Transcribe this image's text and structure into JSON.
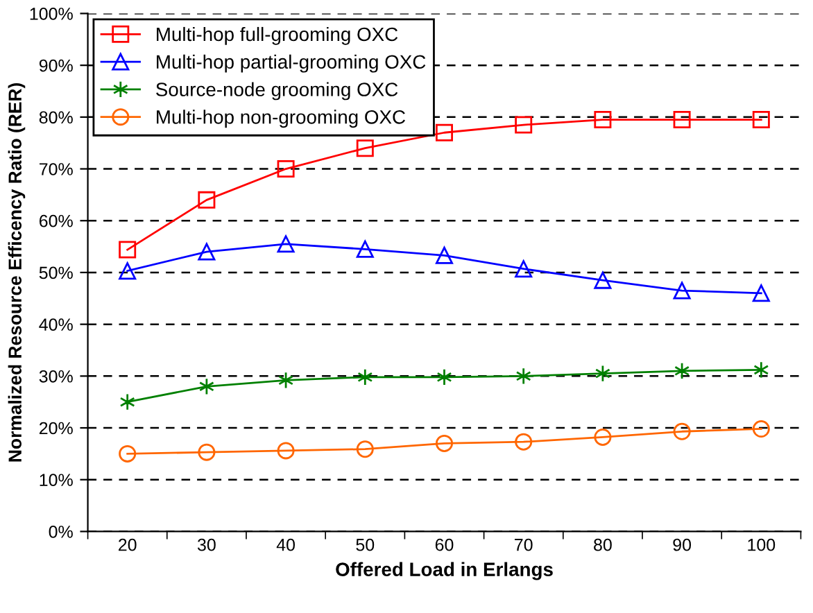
{
  "chart_data": {
    "type": "line",
    "xlabel": "Offered Load in Erlangs",
    "ylabel": "Normalized Resource Efficency Ratio (RER)",
    "categories": [
      "20",
      "30",
      "40",
      "50",
      "60",
      "70",
      "80",
      "90",
      "100"
    ],
    "ylim": [
      0,
      100
    ],
    "yticks": [
      {
        "value": 0,
        "label": "0%"
      },
      {
        "value": 10,
        "label": "10%"
      },
      {
        "value": 20,
        "label": "20%"
      },
      {
        "value": 30,
        "label": "30%"
      },
      {
        "value": 40,
        "label": "40%"
      },
      {
        "value": 50,
        "label": "50%"
      },
      {
        "value": 60,
        "label": "60%"
      },
      {
        "value": 70,
        "label": "70%"
      },
      {
        "value": 80,
        "label": "80%"
      },
      {
        "value": 90,
        "label": "90%"
      },
      {
        "value": 100,
        "label": "100%"
      }
    ],
    "grid": "y",
    "legend": "top left",
    "line_style": "solid",
    "series": [
      {
        "name": "Multi-hop full-grooming OXC",
        "color": "#ff0000",
        "marker": "square",
        "values": [
          54.4,
          64,
          70,
          74,
          77,
          78.5,
          79.5,
          79.5,
          79.5
        ]
      },
      {
        "name": "Multi-hop partial-grooming OXC",
        "color": "#0000ff",
        "marker": "triangle",
        "values": [
          50.3,
          54,
          55.5,
          54.5,
          53.3,
          50.7,
          48.5,
          46.5,
          46
        ]
      },
      {
        "name": "Source-node grooming OXC",
        "color": "#008000",
        "marker": "cross",
        "values": [
          25,
          28,
          29.2,
          29.8,
          29.8,
          30,
          30.5,
          31,
          31.2
        ]
      },
      {
        "name": "Multi-hop non-grooming OXC",
        "color": "#ff6600",
        "marker": "circle",
        "values": [
          15,
          15.3,
          15.6,
          15.9,
          17,
          17.3,
          18.2,
          19.3,
          19.8
        ]
      }
    ]
  }
}
